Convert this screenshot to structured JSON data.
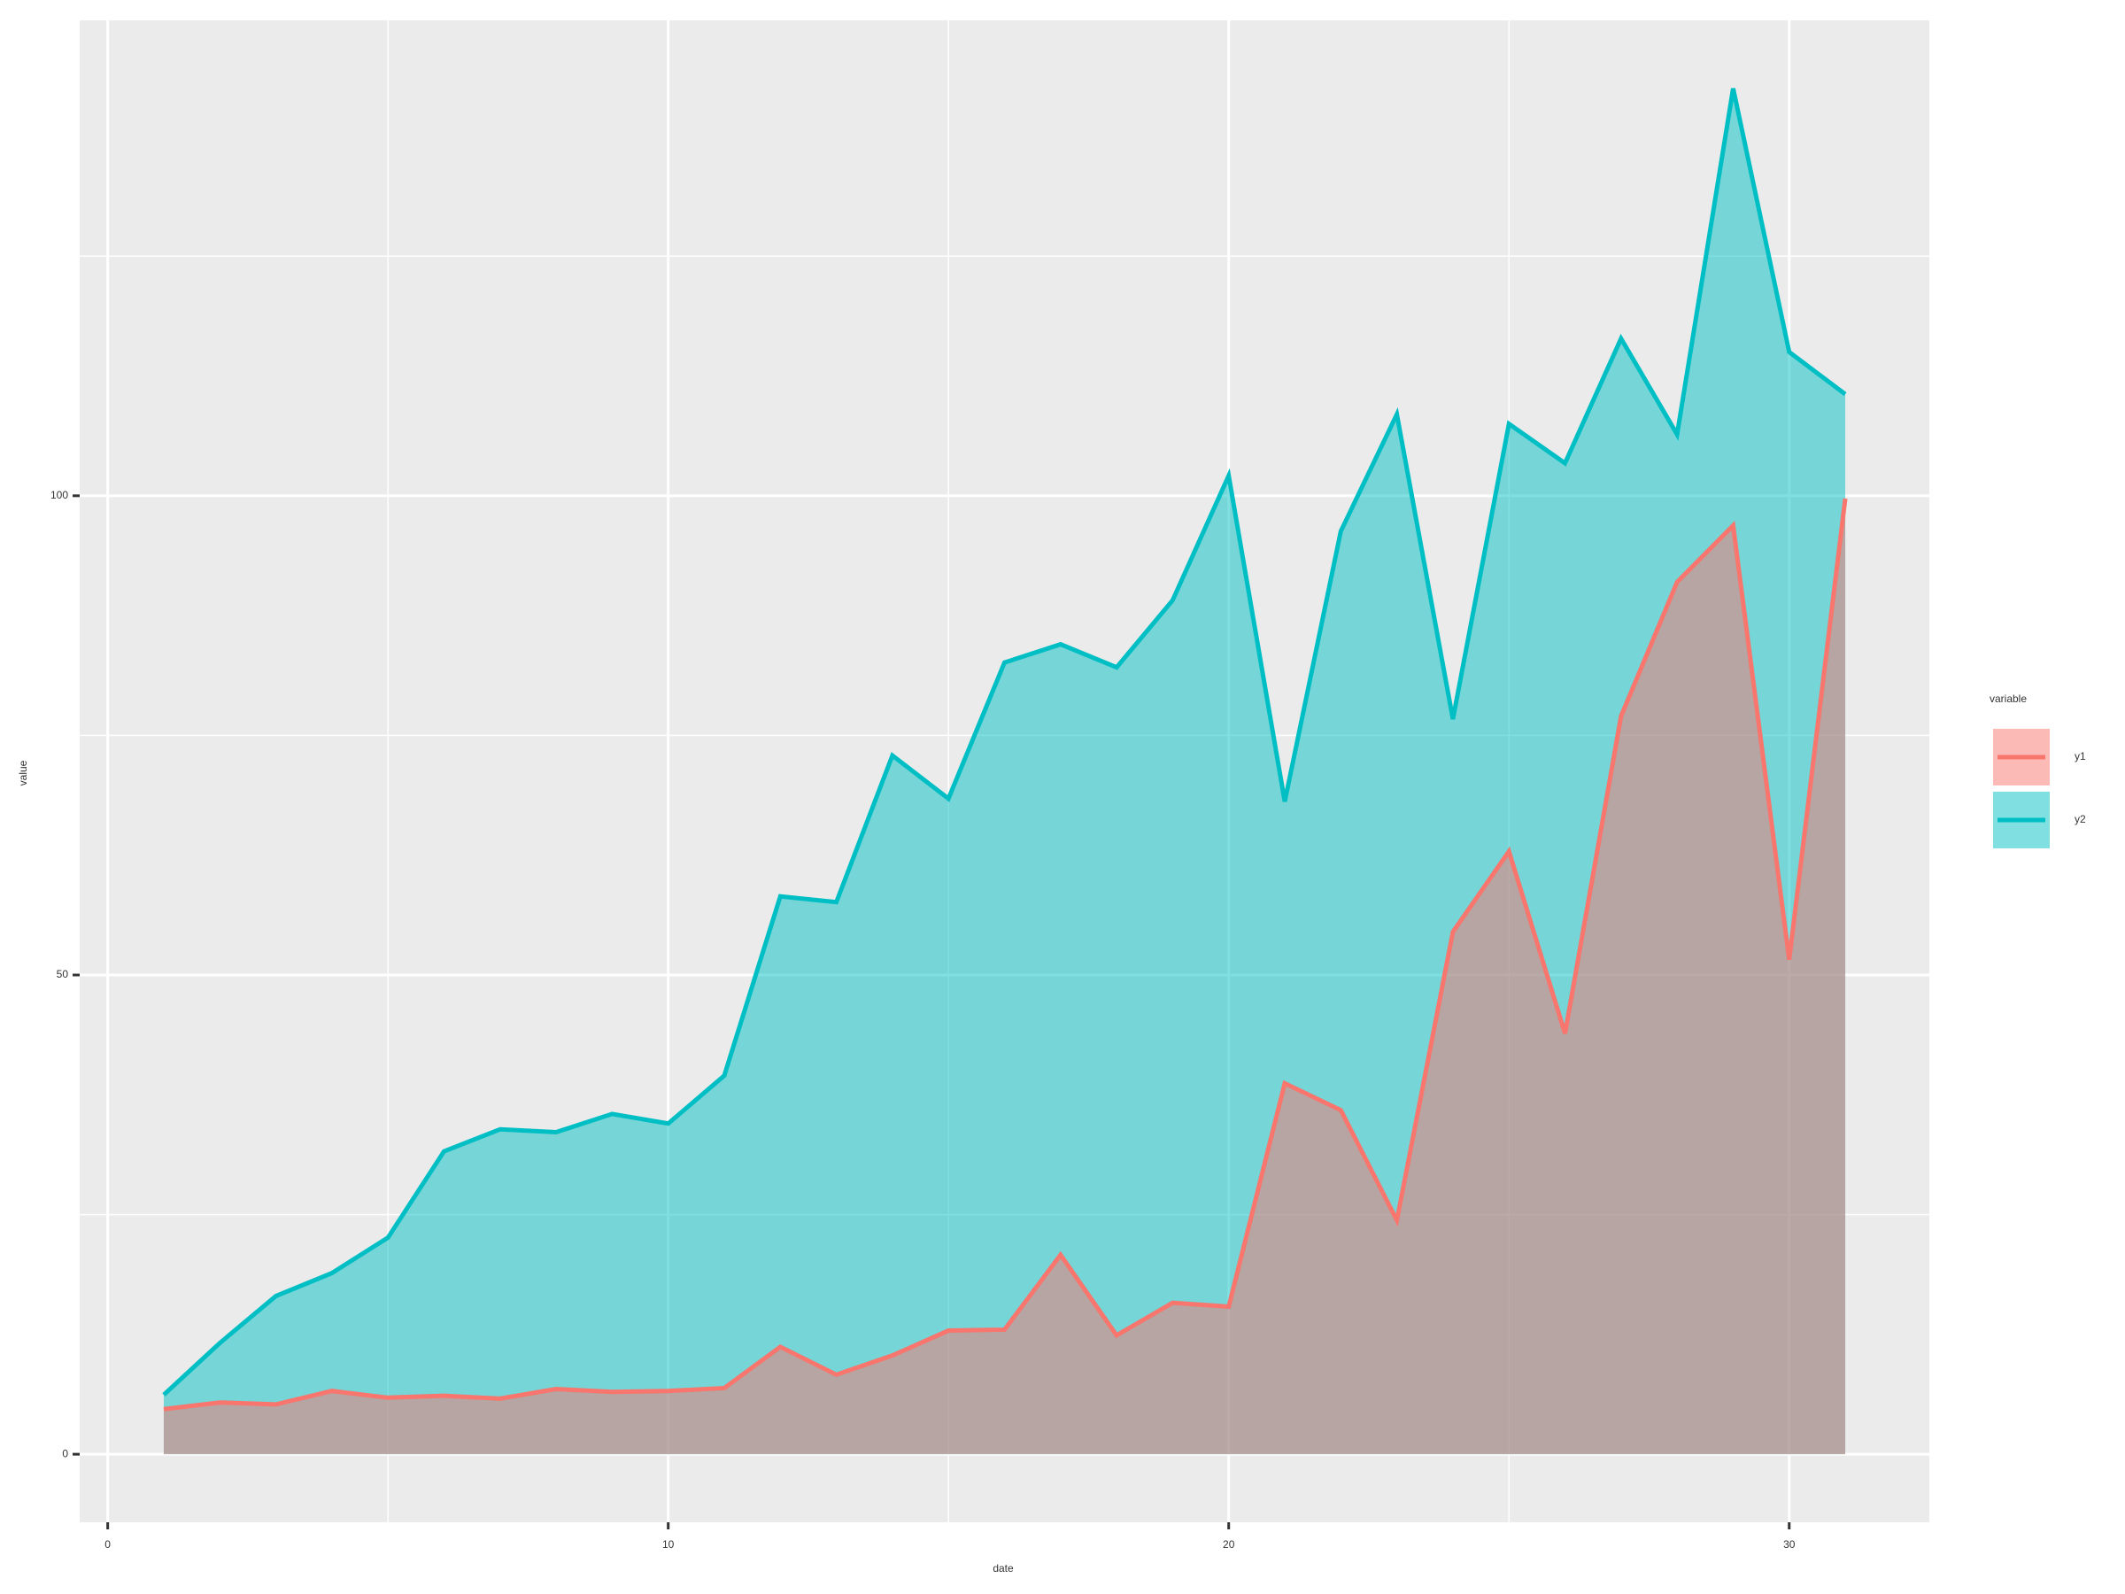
{
  "chart_data": {
    "type": "area",
    "x_label": "date",
    "y_label": "value",
    "legend_title": "variable",
    "x": [
      1,
      2,
      3,
      4,
      5,
      6,
      7,
      8,
      9,
      10,
      11,
      12,
      13,
      14,
      15,
      16,
      17,
      18,
      19,
      20,
      21,
      22,
      23,
      24,
      25,
      26,
      27,
      28,
      29,
      30,
      31
    ],
    "series": [
      {
        "name": "y1",
        "color": "#F8766D",
        "values": [
          4.7,
          5.4,
          5.2,
          6.6,
          5.9,
          6.1,
          5.8,
          6.8,
          6.5,
          6.6,
          6.9,
          11.2,
          8.3,
          10.3,
          12.9,
          13.0,
          20.8,
          12.4,
          15.8,
          15.4,
          38.7,
          35.9,
          24.4,
          54.5,
          62.9,
          43.9,
          77.0,
          91.0,
          96.9,
          51.6,
          99.7
        ]
      },
      {
        "name": "y2",
        "color": "#00BFC4",
        "values": [
          6.2,
          11.6,
          16.5,
          18.9,
          22.6,
          31.6,
          33.9,
          33.6,
          35.5,
          34.5,
          39.5,
          58.2,
          57.6,
          72.9,
          68.4,
          82.6,
          84.5,
          82.1,
          89.1,
          102.1,
          68.1,
          96.3,
          108.5,
          76.7,
          107.5,
          103.4,
          116.4,
          106.4,
          142.5,
          115.0,
          110.6
        ]
      }
    ],
    "area_opacity": 0.5,
    "xlim": [
      -0.5,
      32.5
    ],
    "xticks": [
      0,
      10,
      20,
      30
    ],
    "x_minor_grid": [
      5,
      15,
      25
    ],
    "ylim": [
      -7.1,
      149.6
    ],
    "yticks": [
      0,
      50,
      100
    ],
    "y_minor_grid": [
      25,
      75,
      125
    ],
    "grid": true,
    "legend_position": "right"
  }
}
